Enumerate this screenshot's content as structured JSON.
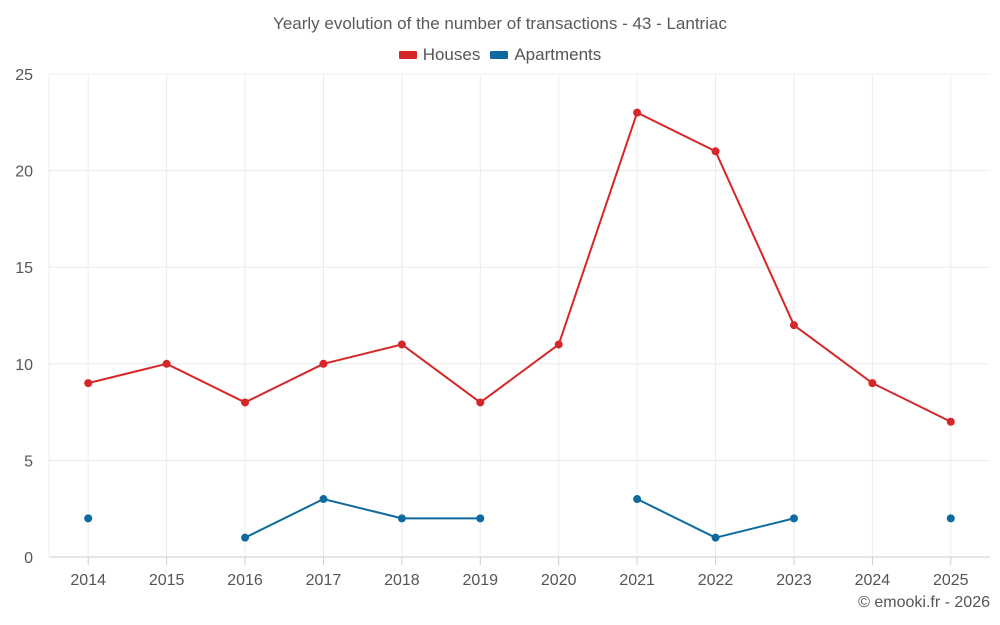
{
  "chart_data": {
    "type": "line",
    "title": "Yearly evolution of the number of transactions - 43 - Lantriac",
    "categories": [
      "2014",
      "2015",
      "2016",
      "2017",
      "2018",
      "2019",
      "2020",
      "2021",
      "2022",
      "2023",
      "2024",
      "2025"
    ],
    "series": [
      {
        "name": "Houses",
        "color": "#d62728",
        "values": [
          9,
          10,
          8,
          10,
          11,
          8,
          11,
          23,
          21,
          12,
          9,
          7
        ]
      },
      {
        "name": "Apartments",
        "color": "#0e6a9e",
        "values": [
          2,
          null,
          1,
          3,
          2,
          2,
          null,
          3,
          1,
          2,
          null,
          2
        ]
      }
    ],
    "y_ticks": [
      0,
      5,
      10,
      15,
      20,
      25
    ],
    "ylim": [
      0,
      25
    ],
    "xlabel": "",
    "ylabel": "",
    "legend_position": "top-center",
    "grid": true
  },
  "credit": "© emooki.fr - 2026"
}
